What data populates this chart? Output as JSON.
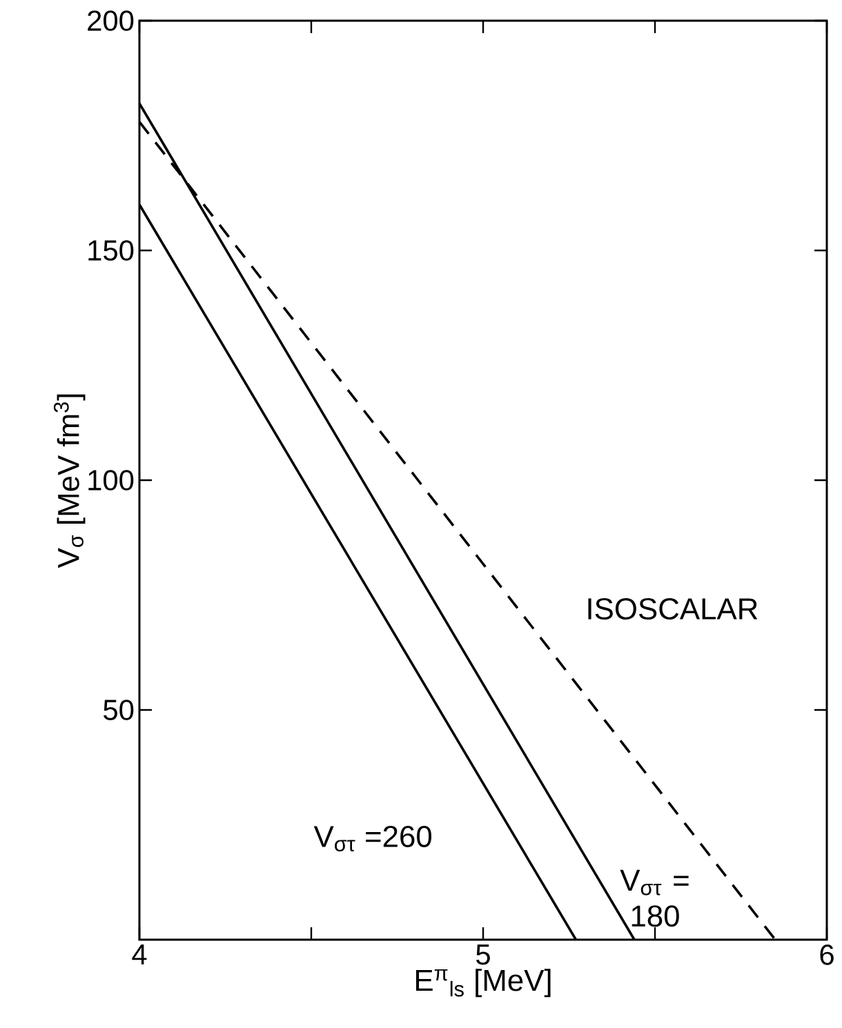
{
  "chart_data": {
    "type": "line",
    "xlabel": "E$^{π}$$_{ls}$ [MeV]",
    "ylabel": "V$_{σ}$ [MeV fm$^{3}$]",
    "series": [
      {
        "color": "#000000",
        "line_style": "solid",
        "x": [
          4,
          5.27
        ],
        "values": [
          160,
          0
        ]
      },
      {
        "color": "#000000",
        "line_style": "solid",
        "x": [
          4,
          5.44
        ],
        "values": [
          182,
          0
        ]
      },
      {
        "color": "#000000",
        "line_style": "dashed",
        "x": [
          4,
          5.85
        ],
        "values": [
          178,
          0
        ]
      }
    ],
    "annotations": [
      "V$_{στ}$ =260",
      "V$_{στ}$ = 180",
      "ISOSCALAR"
    ],
    "xlim": [
      4,
      6
    ],
    "ylim": [
      0,
      200
    ],
    "xticks": [
      4,
      {
        "value": 4.5,
        "label": null
      },
      5,
      {
        "value": 5.5,
        "label": null
      },
      6
    ],
    "yticks": [
      50,
      100,
      150,
      200
    ],
    "grid": false,
    "marker": "none"
  }
}
